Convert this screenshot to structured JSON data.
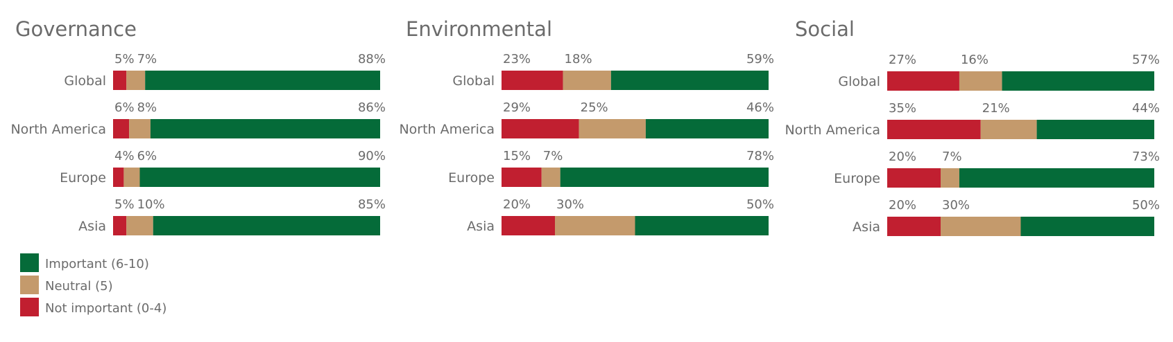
{
  "colors": {
    "not_important": "#c11f30",
    "neutral": "#c49a6c",
    "important": "#056b39",
    "text": "#6b6b6b"
  },
  "legend": [
    {
      "label": "Important (6-10)",
      "color": "#056b39"
    },
    {
      "label": "Neutral (5)",
      "color": "#c49a6c"
    },
    {
      "label": "Not important (0-4)",
      "color": "#c11f30"
    }
  ],
  "chart_data": [
    {
      "type": "bar",
      "orientation": "horizontal",
      "stacked": true,
      "title": "Governance",
      "categories": [
        "Global",
        "North America",
        "Europe",
        "Asia"
      ],
      "series": [
        {
          "name": "Not important (0-4)",
          "values": [
            5,
            6,
            4,
            5
          ],
          "labels": [
            "5%",
            "6%",
            "4%",
            "5%"
          ]
        },
        {
          "name": "Neutral (5)",
          "values": [
            7,
            8,
            6,
            10
          ],
          "labels": [
            "7%",
            "8%",
            "6%",
            "10%"
          ]
        },
        {
          "name": "Important (6-10)",
          "values": [
            88,
            86,
            90,
            85
          ],
          "labels": [
            "88%",
            "86%",
            "90%",
            "85%"
          ]
        }
      ],
      "xlim": [
        0,
        100
      ]
    },
    {
      "type": "bar",
      "orientation": "horizontal",
      "stacked": true,
      "title": "Environmental",
      "categories": [
        "Global",
        "North America",
        "Europe",
        "Asia"
      ],
      "series": [
        {
          "name": "Not important (0-4)",
          "values": [
            23,
            29,
            15,
            20
          ],
          "labels": [
            "23%",
            "29%",
            "15%",
            "20%"
          ]
        },
        {
          "name": "Neutral (5)",
          "values": [
            18,
            25,
            7,
            30
          ],
          "labels": [
            "18%",
            "25%",
            "7%",
            "30%"
          ]
        },
        {
          "name": "Important (6-10)",
          "values": [
            59,
            46,
            78,
            50
          ],
          "labels": [
            "59%",
            "46%",
            "78%",
            "50%"
          ]
        }
      ],
      "xlim": [
        0,
        100
      ]
    },
    {
      "type": "bar",
      "orientation": "horizontal",
      "stacked": true,
      "title": "Social",
      "categories": [
        "Global",
        "North America",
        "Europe",
        "Asia"
      ],
      "series": [
        {
          "name": "Not important (0-4)",
          "values": [
            27,
            35,
            20,
            20
          ],
          "labels": [
            "27%",
            "35%",
            "20%",
            "20%"
          ]
        },
        {
          "name": "Neutral (5)",
          "values": [
            16,
            21,
            7,
            30
          ],
          "labels": [
            "16%",
            "21%",
            "7%",
            "30%"
          ]
        },
        {
          "name": "Important (6-10)",
          "values": [
            57,
            44,
            73,
            50
          ],
          "labels": [
            "57%",
            "44%",
            "73%",
            "50%"
          ]
        }
      ],
      "xlim": [
        0,
        100
      ]
    }
  ]
}
